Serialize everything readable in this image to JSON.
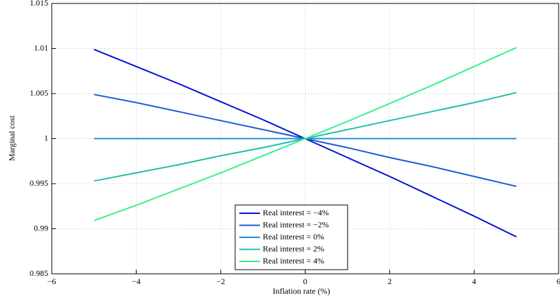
{
  "chart_data": {
    "type": "line",
    "xlabel": "Inflation rate (%)",
    "ylabel": "Marginal cost",
    "x": [
      -5,
      -4,
      -3,
      -2,
      -1,
      0,
      1,
      2,
      3,
      4,
      5
    ],
    "series": [
      {
        "name": "Real interest = −4%",
        "color": "#0010d8",
        "values": [
          1.0099,
          1.008,
          1.0061,
          1.0041,
          1.0021,
          1.0,
          0.9979,
          0.9958,
          0.9936,
          0.9914,
          0.9891
        ]
      },
      {
        "name": "Real interest = −2%",
        "color": "#1a5ad6",
        "values": [
          1.0049,
          1.004,
          1.003,
          1.002,
          1.001,
          1.0,
          0.999,
          0.9979,
          0.9969,
          0.9958,
          0.9947
        ]
      },
      {
        "name": "Real interest = 0%",
        "color": "#1e8fd0",
        "values": [
          1.0,
          1.0,
          1.0,
          1.0,
          1.0,
          1.0,
          1.0,
          1.0,
          1.0,
          1.0,
          1.0
        ]
      },
      {
        "name": "Real interest = 2%",
        "color": "#1fbfa8",
        "values": [
          0.9953,
          0.9962,
          0.9971,
          0.9981,
          0.999,
          1.0,
          1.001,
          1.002,
          1.003,
          1.004,
          1.0051
        ]
      },
      {
        "name": "Real interest = 4%",
        "color": "#33f28c",
        "values": [
          0.9909,
          0.9926,
          0.9944,
          0.9962,
          0.9981,
          1.0,
          1.0019,
          1.0039,
          1.0059,
          1.008,
          1.0101
        ]
      }
    ],
    "xlim": [
      -6,
      6
    ],
    "xticks": [
      {
        "value": -6,
        "label": "−6"
      },
      {
        "value": -4,
        "label": "−4"
      },
      {
        "value": -2,
        "label": "−2"
      },
      0,
      2,
      4,
      6
    ],
    "ylim": [
      0.985,
      1.015
    ],
    "yticks": [
      0.985,
      0.99,
      0.995,
      1,
      1.005,
      1.01,
      1.015
    ],
    "grid": true,
    "legend": "lower center"
  }
}
